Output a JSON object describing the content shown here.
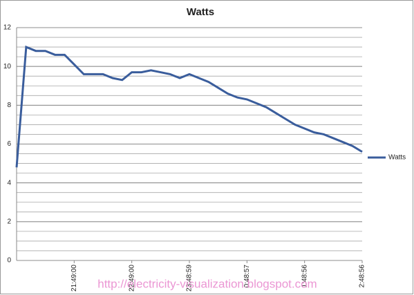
{
  "chart_data": {
    "type": "line",
    "title": "Watts",
    "categories": [
      null,
      null,
      null,
      null,
      null,
      null,
      "21:49:00",
      null,
      null,
      null,
      null,
      null,
      "22:49:00",
      null,
      null,
      null,
      null,
      null,
      "23:48:59",
      null,
      null,
      null,
      null,
      null,
      "0:48:57",
      null,
      null,
      null,
      null,
      null,
      "1:48:56",
      null,
      null,
      null,
      null,
      null,
      "2:48:56"
    ],
    "series": [
      {
        "name": "Watts",
        "color": "#3a5d9c",
        "values": [
          4.8,
          11.0,
          10.8,
          10.8,
          10.6,
          10.6,
          10.1,
          9.6,
          9.6,
          9.6,
          9.4,
          9.3,
          9.7,
          9.7,
          9.8,
          9.7,
          9.6,
          9.4,
          9.6,
          9.4,
          9.2,
          8.9,
          8.6,
          8.4,
          8.3,
          8.1,
          7.9,
          7.6,
          7.3,
          7.0,
          6.8,
          6.6,
          6.5,
          6.3,
          6.1,
          5.9,
          5.6
        ]
      }
    ],
    "ylim": [
      0,
      12
    ],
    "yticks": [
      0,
      2,
      4,
      6,
      8,
      10,
      12
    ],
    "grid": true,
    "minor_grid_step": 0.5,
    "legend": "right",
    "watermark": "http://electricity-visualization.blogspot.com"
  }
}
